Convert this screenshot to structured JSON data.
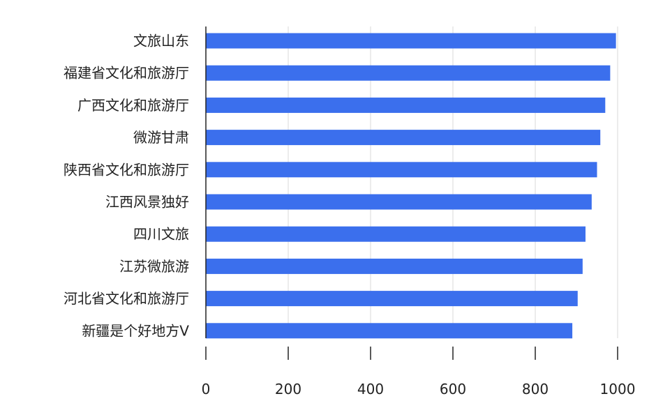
{
  "chart_data": {
    "type": "bar",
    "orientation": "horizontal",
    "categories": [
      "文旅山东",
      "福建省文化和旅游厅",
      "广西文化和旅游厅",
      "微游甘肃",
      "陕西省文化和旅游厅",
      "江西风景独好",
      "四川文旅",
      "江苏微旅游",
      "河北省文化和旅游厅",
      "新疆是个好地方V"
    ],
    "values": [
      996,
      982,
      970,
      958,
      950,
      937,
      922,
      915,
      903,
      890
    ],
    "x_ticks": [
      "0",
      "200",
      "400",
      "600",
      "800",
      "1000"
    ],
    "xlim": [
      0,
      1000
    ],
    "grid": true,
    "bar_color": "#3b6fed",
    "title": "",
    "xlabel": "",
    "ylabel": ""
  }
}
